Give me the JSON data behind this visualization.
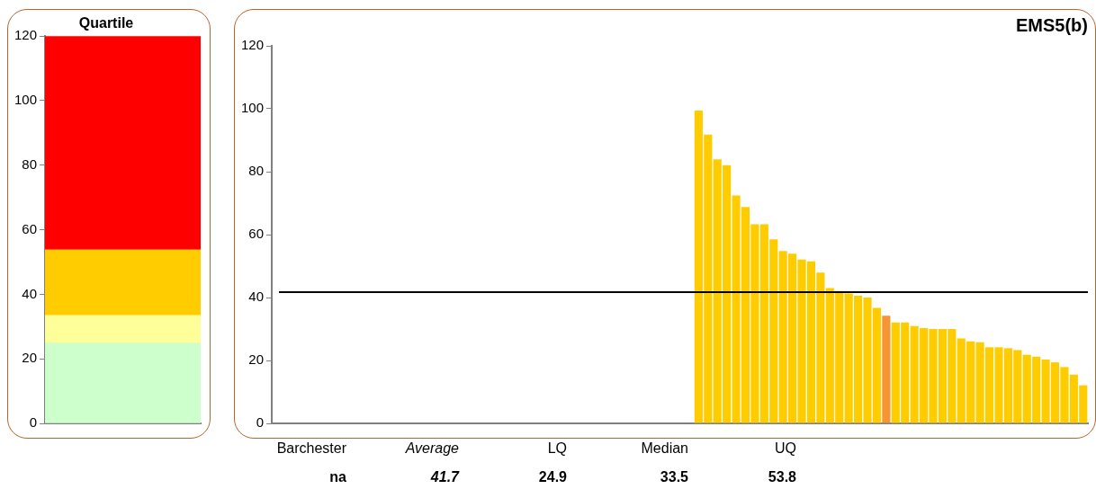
{
  "chart_data": [
    {
      "type": "bar",
      "title": "Quartile",
      "categories": [
        null
      ],
      "stacked": true,
      "series": [
        {
          "color": "#ccffcc",
          "values": [
            24.9
          ]
        },
        {
          "color": "#ffff99",
          "values": [
            8.6
          ]
        },
        {
          "color": "#ffcc00",
          "values": [
            20.3
          ]
        },
        {
          "color": "#ff0000",
          "values": [
            66.2
          ]
        }
      ],
      "ylim": [
        0,
        120
      ],
      "yticks": [
        0,
        20,
        40,
        60,
        80,
        100,
        120
      ]
    },
    {
      "type": "bar",
      "title": "EMS5(b)",
      "categories": [
        null,
        null,
        null,
        null,
        null,
        null,
        null,
        null,
        null,
        null,
        null,
        null,
        null,
        null,
        null,
        null,
        null,
        null,
        null,
        null,
        null,
        null,
        null,
        null,
        null,
        null,
        null,
        null,
        null,
        null,
        null,
        null,
        null,
        null,
        null,
        null,
        null,
        null,
        null,
        null,
        null,
        null,
        null,
        null,
        null,
        null,
        null,
        null,
        null,
        null,
        null,
        null,
        null,
        null,
        null,
        null,
        null,
        null,
        null,
        null,
        null,
        null,
        null,
        null,
        null,
        null,
        null,
        null,
        null,
        null,
        null,
        null,
        null,
        null,
        null,
        null,
        null,
        null,
        null,
        null,
        null,
        null,
        null,
        null,
        null,
        null,
        null
      ],
      "values": [
        null,
        null,
        null,
        null,
        null,
        null,
        null,
        null,
        null,
        null,
        null,
        null,
        null,
        null,
        null,
        null,
        null,
        null,
        null,
        null,
        null,
        null,
        null,
        null,
        null,
        null,
        null,
        null,
        null,
        null,
        null,
        null,
        null,
        null,
        null,
        null,
        null,
        null,
        null,
        null,
        null,
        null,
        null,
        null,
        null,
        99.4,
        91.8,
        83.9,
        82.1,
        72.4,
        68.8,
        63.3,
        63.3,
        58.5,
        54.8,
        53.9,
        52.1,
        51.5,
        47.9,
        43.0,
        42.1,
        41.3,
        40.6,
        40.0,
        36.7,
        34.2,
        32.1,
        32.1,
        30.9,
        30.3,
        30.0,
        30.0,
        30.0,
        27.0,
        26.1,
        25.8,
        24.2,
        24.2,
        23.9,
        23.3,
        21.8,
        21.2,
        20.3,
        19.4,
        17.9,
        15.5,
        12.1
      ],
      "colors": [
        "#ffcc00",
        "#ffcc00",
        "#ffcc00",
        "#ffcc00",
        "#ffcc00",
        "#ffcc00",
        "#ffcc00",
        "#ffcc00",
        "#ffcc00",
        "#ffcc00",
        "#ffcc00",
        "#ffcc00",
        "#ffcc00",
        "#ffcc00",
        "#ffcc00",
        "#ffcc00",
        "#ffcc00",
        "#ffcc00",
        "#ffcc00",
        "#ffcc00",
        "#ffcc00",
        "#ffcc00",
        "#ffcc00",
        "#ffcc00",
        "#ffcc00",
        "#ffcc00",
        "#ffcc00",
        "#ffcc00",
        "#ffcc00",
        "#ffcc00",
        "#ffcc00",
        "#ffcc00",
        "#ffcc00",
        "#ffcc00",
        "#ffcc00",
        "#ffcc00",
        "#ffcc00",
        "#ffcc00",
        "#ffcc00",
        "#ffcc00",
        "#ffcc00",
        "#ffcc00",
        "#ffcc00",
        "#ffcc00",
        "#ffcc00",
        "#ffcc00",
        "#ffcc00",
        "#ffcc00",
        "#ffcc00",
        "#ffcc00",
        "#ffcc00",
        "#ffcc00",
        "#ffcc00",
        "#ffcc00",
        "#ffcc00",
        "#ffcc00",
        "#ffcc00",
        "#ffcc00",
        "#ffcc00",
        "#ffcc00",
        "#ffcc00",
        "#ffcc00",
        "#ffcc00",
        "#ffcc00",
        "#ffcc00",
        "#f79433",
        "#ffcc00",
        "#ffcc00",
        "#ffcc00",
        "#ffcc00",
        "#ffcc00",
        "#ffcc00",
        "#ffcc00",
        "#ffcc00",
        "#ffcc00",
        "#ffcc00",
        "#ffcc00",
        "#ffcc00",
        "#ffcc00",
        "#ffcc00",
        "#ffcc00",
        "#ffcc00",
        "#ffcc00",
        "#ffcc00",
        "#ffcc00",
        "#ffcc00",
        "#ffcc00"
      ],
      "ylim": [
        0,
        120
      ],
      "yticks": [
        0,
        20,
        40,
        60,
        80,
        100,
        120
      ],
      "ref_lines": [
        {
          "axis": "y",
          "value": 41.7,
          "color": "#000000"
        }
      ],
      "annotations": [
        "Barchester",
        "Average",
        "LQ",
        "Median",
        "UQ",
        "na",
        "41.7",
        "24.9",
        "33.5",
        "53.8"
      ]
    }
  ]
}
